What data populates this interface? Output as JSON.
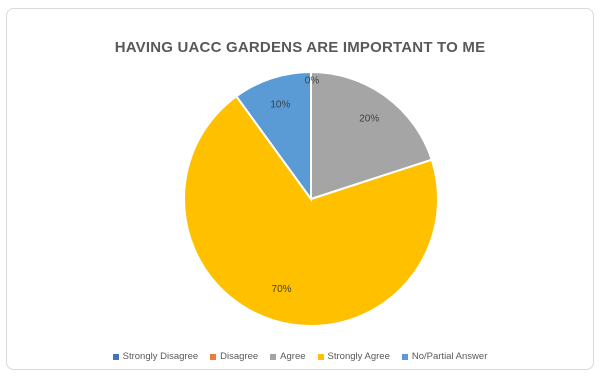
{
  "chart_data": {
    "type": "pie",
    "title": "HAVING UACC GARDENS ARE IMPORTANT TO ME",
    "categories": [
      "Strongly Disagree",
      "Disagree",
      "Agree",
      "Strongly Agree",
      "No/Partial Answer"
    ],
    "values": [
      0,
      0,
      20,
      70,
      10
    ],
    "data_labels": [
      "0%",
      "",
      "20%",
      "70%",
      "10%"
    ],
    "colors": [
      "#4472C4",
      "#ED7D31",
      "#A5A5A5",
      "#FFC000",
      "#5B9BD5"
    ],
    "legend_position": "bottom",
    "start_angle": "top",
    "direction": "clockwise"
  }
}
